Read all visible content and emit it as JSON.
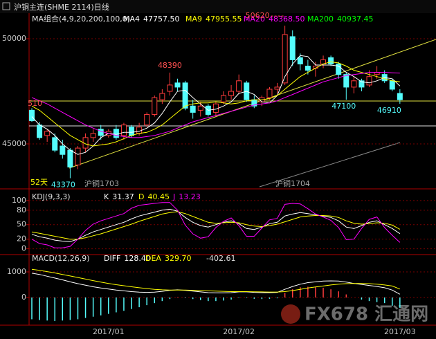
{
  "header": {
    "title": "沪铜主连(SHME 2114)日线"
  },
  "watermark": "FX678 汇通网",
  "chart_data": [
    {
      "type": "candlestick",
      "legend_title": "MA组合(4,9,20,200,100,0)",
      "up_color": "#ff3c3c",
      "down_color": "#54fcfc",
      "ylim": [
        42895,
        51184
      ],
      "yticks": [
        50000,
        45000
      ],
      "grid": true,
      "open": [
        46600,
        45900,
        45400,
        45300,
        44900,
        44700,
        44000,
        44800,
        45300,
        45700,
        45400,
        45700,
        45400,
        45800,
        45500,
        45900,
        46400,
        47100,
        47500,
        47900,
        47900,
        46800,
        46600,
        46800,
        46500,
        47000,
        47300,
        47500,
        47900,
        47100,
        47000,
        47200,
        47600,
        47900,
        50100,
        49100,
        48700,
        48600,
        48800,
        49100,
        48800,
        48300,
        47700,
        48000,
        47800,
        48300,
        48300,
        48000,
        47400
      ],
      "high": [
        46700,
        46050,
        45700,
        45500,
        45200,
        44800,
        44900,
        45500,
        45700,
        45900,
        45700,
        45900,
        46000,
        45900,
        46000,
        46500,
        47300,
        47600,
        48390,
        48100,
        48000,
        47100,
        47000,
        46900,
        47000,
        47500,
        47800,
        48300,
        48000,
        47300,
        47300,
        47700,
        47900,
        50620,
        50400,
        49300,
        49000,
        48900,
        49200,
        49200,
        48900,
        48400,
        48200,
        48100,
        48500,
        48700,
        48500,
        48100,
        47600
      ],
      "low": [
        46050,
        45200,
        45100,
        44600,
        44300,
        43370,
        43800,
        44600,
        45100,
        45200,
        45300,
        45200,
        45200,
        45300,
        45400,
        45800,
        46300,
        46900,
        47300,
        47500,
        46600,
        46200,
        46300,
        46300,
        46300,
        46900,
        47100,
        47400,
        47000,
        46700,
        46800,
        47100,
        47400,
        47800,
        48700,
        48500,
        48300,
        48200,
        48600,
        48700,
        48100,
        47100,
        47400,
        47500,
        47700,
        48100,
        47900,
        47500,
        46910
      ],
      "close": [
        46100,
        45300,
        45600,
        44700,
        44500,
        43900,
        44800,
        45300,
        45500,
        45400,
        45600,
        45300,
        45900,
        45400,
        45800,
        46400,
        47200,
        47400,
        47800,
        47700,
        46700,
        46500,
        46800,
        46400,
        46900,
        47300,
        47500,
        48000,
        47100,
        46800,
        47200,
        47600,
        47700,
        50200,
        49000,
        48800,
        48500,
        48700,
        49000,
        48800,
        48300,
        47700,
        48000,
        47700,
        48200,
        48400,
        48000,
        47600,
        47100
      ],
      "series": [
        {
          "name": "MA4",
          "color": "#ffffff",
          "current": {
            "value": 47757.5,
            "label": "47757.50"
          },
          "values": [
            46300,
            45900,
            45700,
            45400,
            45000,
            44700,
            44500,
            44600,
            44900,
            45300,
            45500,
            45450,
            45550,
            45550,
            45600,
            45750,
            46000,
            46450,
            47000,
            47500,
            47550,
            47200,
            46900,
            46600,
            46650,
            46800,
            47000,
            47400,
            47500,
            47350,
            47000,
            46950,
            47300,
            48200,
            48800,
            49200,
            49150,
            48750,
            48750,
            48750,
            48700,
            48400,
            48200,
            47950,
            47900,
            48000,
            48150,
            48100,
            47757.5
          ]
        },
        {
          "name": "MA9",
          "color": "#ffff00",
          "current": {
            "value": 47955.55,
            "label": "47955.55"
          },
          "values": [
            46800,
            46600,
            46300,
            46000,
            45700,
            45400,
            45200,
            45000,
            44900,
            44950,
            45000,
            45100,
            45250,
            45400,
            45500,
            45550,
            45700,
            45900,
            46200,
            46500,
            46800,
            46900,
            46950,
            46950,
            47000,
            46950,
            46900,
            46950,
            47050,
            47100,
            47100,
            47150,
            47300,
            47600,
            47900,
            48200,
            48400,
            48600,
            48800,
            48900,
            48850,
            48700,
            48500,
            48400,
            48300,
            48200,
            48100,
            48000,
            47955.55
          ]
        },
        {
          "name": "MA20",
          "color": "#ff00ff",
          "current": {
            "value": 48368.5,
            "label": "48368.50"
          },
          "values": [
            47200,
            47050,
            46900,
            46700,
            46500,
            46300,
            46100,
            45900,
            45750,
            45600,
            45500,
            45400,
            45350,
            45300,
            45300,
            45350,
            45400,
            45500,
            45600,
            45750,
            45900,
            46050,
            46150,
            46250,
            46350,
            46450,
            46550,
            46650,
            46750,
            46850,
            46900,
            46950,
            47050,
            47200,
            47350,
            47500,
            47650,
            47800,
            47950,
            48050,
            48150,
            48250,
            48300,
            48350,
            48400,
            48400,
            48400,
            48380,
            48368.5
          ]
        },
        {
          "name": "MA200",
          "color": "#00ff00",
          "current": {
            "value": 40937.45,
            "label": "40937.45"
          }
        }
      ],
      "annotations": [
        "510",
        "52天",
        "沪铜1703",
        "沪铜1704"
      ]
    },
    {
      "type": "line",
      "title": "KDJ(9,3,3)",
      "ylim": [
        -12,
        117
      ],
      "yticks": [
        100,
        80,
        50,
        20,
        0
      ],
      "grid": true,
      "series": [
        {
          "name": "K",
          "color": "#ffffff",
          "values": [
            30,
            25,
            22,
            18,
            16,
            15,
            20,
            28,
            35,
            40,
            45,
            50,
            55,
            62,
            68,
            72,
            76,
            80,
            82,
            78,
            65,
            55,
            48,
            45,
            50,
            55,
            58,
            52,
            42,
            40,
            45,
            52,
            55,
            68,
            72,
            75,
            73,
            70,
            68,
            65,
            58,
            45,
            42,
            48,
            55,
            58,
            50,
            42,
            31.37
          ]
        },
        {
          "name": "D",
          "color": "#ffff00",
          "values": [
            35,
            32,
            29,
            26,
            23,
            20,
            20,
            23,
            27,
            31,
            36,
            41,
            46,
            51,
            57,
            62,
            67,
            72,
            75,
            77,
            73,
            67,
            61,
            55,
            53,
            54,
            55,
            54,
            50,
            47,
            46,
            48,
            51,
            56,
            61,
            66,
            68,
            69,
            69,
            68,
            65,
            58,
            53,
            51,
            52,
            54,
            53,
            49,
            40.45
          ]
        },
        {
          "name": "J",
          "color": "#ff00ff",
          "values": [
            20,
            11,
            8,
            2,
            2,
            5,
            20,
            38,
            51,
            58,
            63,
            68,
            73,
            84,
            90,
            92,
            94,
            96,
            96,
            80,
            49,
            31,
            22,
            25,
            44,
            57,
            64,
            48,
            26,
            26,
            43,
            60,
            63,
            92,
            94,
            93,
            83,
            72,
            66,
            59,
            44,
            19,
            20,
            42,
            61,
            66,
            44,
            28,
            13.23
          ]
        }
      ]
    },
    {
      "type": "macd",
      "title": "MACD(12,26,9)",
      "ylim": [
        -1081,
        1676
      ],
      "yticks": [
        1000,
        0
      ],
      "grid": true,
      "categories": [
        null,
        null,
        null,
        null,
        null,
        null,
        null,
        null,
        null,
        null,
        "2017/01",
        null,
        null,
        null,
        null,
        null,
        null,
        null,
        null,
        null,
        null,
        null,
        null,
        null,
        null,
        null,
        null,
        "2017/02",
        null,
        null,
        null,
        null,
        null,
        null,
        null,
        null,
        null,
        null,
        null,
        null,
        null,
        null,
        null,
        null,
        null,
        null,
        null,
        null,
        "2017/03"
      ],
      "series": [
        {
          "name": "DIFF",
          "color": "#ffffff",
          "current": {
            "value": 128.4,
            "label": "128.40"
          },
          "values": [
            950,
            900,
            830,
            760,
            690,
            610,
            540,
            480,
            420,
            370,
            330,
            290,
            260,
            230,
            210,
            200,
            210,
            240,
            280,
            300,
            280,
            250,
            220,
            190,
            180,
            180,
            190,
            220,
            220,
            200,
            190,
            190,
            200,
            320,
            430,
            520,
            580,
            610,
            640,
            650,
            640,
            600,
            550,
            510,
            470,
            430,
            380,
            290,
            128.4
          ]
        },
        {
          "name": "DEA",
          "color": "#ffff00",
          "current": {
            "value": 329.7,
            "label": "329.70"
          },
          "values": [
            1100,
            1060,
            1010,
            960,
            900,
            840,
            780,
            720,
            660,
            600,
            550,
            500,
            460,
            420,
            380,
            350,
            320,
            300,
            290,
            290,
            290,
            280,
            270,
            260,
            250,
            240,
            230,
            230,
            230,
            225,
            220,
            215,
            215,
            230,
            270,
            320,
            370,
            410,
            450,
            490,
            520,
            540,
            550,
            550,
            540,
            520,
            490,
            450,
            329.7
          ]
        }
      ],
      "histogram": {
        "up_color": "#ff3c3c",
        "down_color": "#54fcfc",
        "values": [
          -850,
          -880,
          -900,
          -920,
          -900,
          -880,
          -850,
          -800,
          -750,
          -700,
          -640,
          -580,
          -520,
          -450,
          -380,
          -300,
          -220,
          -140,
          -60,
          20,
          -20,
          -60,
          -100,
          -140,
          -140,
          -120,
          -80,
          -20,
          -20,
          -50,
          -60,
          -50,
          -30,
          180,
          320,
          400,
          420,
          400,
          380,
          320,
          240,
          120,
          0,
          -80,
          -140,
          -180,
          -220,
          -320,
          -402.61
        ]
      }
    }
  ]
}
